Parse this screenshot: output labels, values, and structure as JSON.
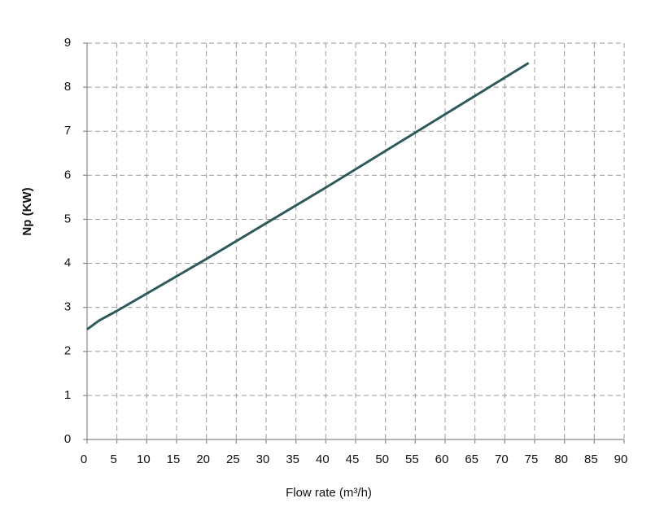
{
  "chart_data": {
    "type": "line",
    "x_label": "Flow rate (m³/h)",
    "y_label": "Np (KW)",
    "series": [
      {
        "color": "#2e5a5c",
        "x": [
          0,
          1,
          2,
          5,
          20,
          40,
          74
        ],
        "values": [
          2.5,
          2.6,
          2.7,
          2.92,
          4.1,
          5.72,
          8.55
        ]
      }
    ],
    "xlim": [
      0,
      90
    ],
    "ylim": [
      0,
      9
    ],
    "xticks": [
      0,
      5,
      10,
      15,
      20,
      25,
      30,
      35,
      40,
      45,
      50,
      55,
      60,
      65,
      70,
      75,
      80,
      85,
      90
    ],
    "yticks": [
      0,
      1,
      2,
      3,
      4,
      5,
      6,
      7,
      8,
      9
    ],
    "grid": true
  }
}
